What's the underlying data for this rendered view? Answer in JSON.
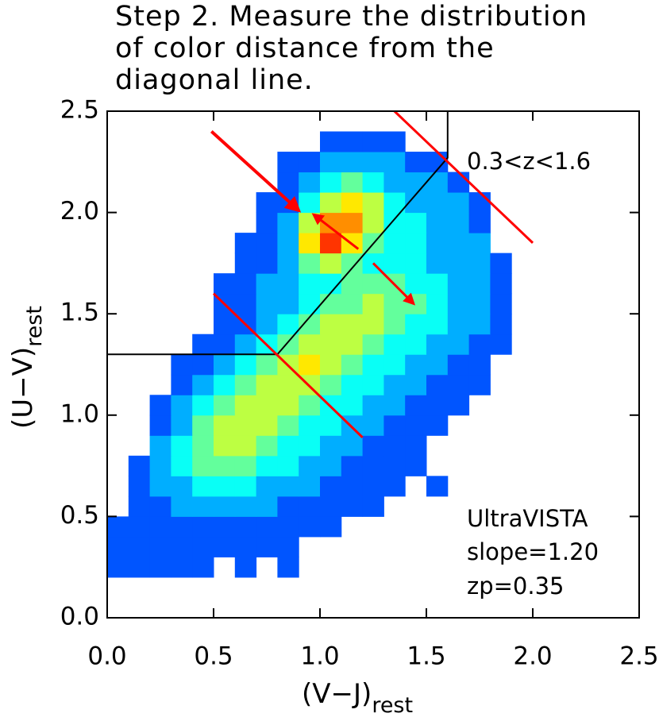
{
  "chart_data": {
    "type": "heatmap",
    "title": [
      "Step 2. Measure the distribution",
      "of color distance from the",
      "diagonal line."
    ],
    "xlabel": "(V−J)",
    "xlabel_sub": "rest",
    "ylabel": "(U−V)",
    "ylabel_sub": "rest",
    "xlim": [
      0,
      2.5
    ],
    "ylim": [
      0,
      2.5
    ],
    "xticks": [
      {
        "value": 0,
        "label": "0.0"
      },
      0.5,
      {
        "value": 1,
        "label": "1.0"
      },
      1.5,
      {
        "value": 2,
        "label": "2.0"
      },
      2.5
    ],
    "yticks": [
      {
        "value": 0,
        "label": "0.0"
      },
      0.5,
      {
        "value": 1,
        "label": "1.0"
      },
      1.5,
      {
        "value": 2,
        "label": "2.0"
      },
      2.5
    ],
    "colormap": "jet",
    "zlim": [
      0,
      10
    ],
    "xbins": [
      0,
      0.1,
      0.2,
      0.3,
      0.4,
      0.5,
      0.6,
      0.7,
      0.8,
      0.9,
      1.0,
      1.1,
      1.2,
      1.3,
      1.4,
      1.5,
      1.6,
      1.7,
      1.8,
      1.9,
      2.0
    ],
    "ybins": [
      0.2,
      0.3,
      0.4,
      0.5,
      0.6,
      0.7,
      0.8,
      0.9,
      1.0,
      1.1,
      1.2,
      1.3,
      1.4,
      1.5,
      1.6,
      1.7,
      1.8,
      1.9,
      2.0,
      2.1,
      2.2,
      2.3,
      2.4
    ],
    "z": [
      [
        1,
        1,
        1,
        1,
        1,
        null,
        1,
        null,
        1,
        null,
        null,
        null,
        null,
        null,
        null,
        null,
        null,
        null,
        null,
        null
      ],
      [
        1,
        1,
        1,
        1,
        1,
        1,
        1,
        1,
        1,
        null,
        null,
        null,
        null,
        null,
        null,
        null,
        null,
        null,
        null,
        null
      ],
      [
        1,
        1,
        1,
        1,
        1,
        1,
        1,
        1,
        1,
        1,
        1,
        null,
        null,
        null,
        null,
        null,
        null,
        null,
        null,
        null
      ],
      [
        null,
        1,
        1,
        2,
        2,
        2,
        2,
        2,
        1,
        1,
        1,
        1,
        1,
        null,
        null,
        null,
        null,
        null,
        null,
        null
      ],
      [
        null,
        1,
        2,
        2,
        3,
        3,
        3,
        2,
        2,
        2,
        1,
        1,
        1,
        1,
        null,
        1,
        null,
        null,
        null,
        null
      ],
      [
        null,
        1,
        2,
        3,
        4,
        4,
        4,
        3,
        3,
        2,
        2,
        1,
        1,
        1,
        1,
        null,
        null,
        null,
        null,
        null
      ],
      [
        null,
        null,
        2,
        3,
        4,
        5,
        5,
        4,
        3,
        3,
        2,
        2,
        1,
        1,
        1,
        null,
        null,
        null,
        null,
        null
      ],
      [
        null,
        null,
        1,
        2,
        4,
        5,
        5,
        5,
        4,
        3,
        3,
        2,
        2,
        1,
        1,
        1,
        null,
        null,
        null,
        null
      ],
      [
        null,
        null,
        1,
        2,
        3,
        4,
        5,
        5,
        5,
        4,
        3,
        3,
        2,
        2,
        1,
        1,
        1,
        null,
        null,
        null
      ],
      [
        null,
        null,
        null,
        1,
        2,
        3,
        4,
        5,
        5,
        5,
        4,
        3,
        3,
        2,
        2,
        1,
        1,
        1,
        null,
        null
      ],
      [
        null,
        null,
        null,
        1,
        1,
        2,
        3,
        4,
        5,
        6,
        5,
        4,
        3,
        3,
        2,
        2,
        1,
        1,
        null,
        null
      ],
      [
        null,
        null,
        null,
        null,
        1,
        1,
        2,
        3,
        4,
        5,
        5,
        5,
        4,
        3,
        3,
        2,
        2,
        1,
        1,
        null
      ],
      [
        null,
        null,
        null,
        null,
        null,
        1,
        1,
        2,
        3,
        4,
        5,
        5,
        5,
        4,
        3,
        3,
        2,
        2,
        1,
        null
      ],
      [
        null,
        null,
        null,
        null,
        null,
        1,
        1,
        2,
        2,
        3,
        4,
        4,
        5,
        4,
        4,
        3,
        2,
        2,
        1,
        null
      ],
      [
        null,
        null,
        null,
        null,
        null,
        1,
        1,
        2,
        2,
        3,
        3,
        4,
        4,
        4,
        3,
        3,
        2,
        2,
        1,
        null
      ],
      [
        null,
        null,
        null,
        null,
        null,
        null,
        1,
        1,
        2,
        4,
        5,
        4,
        3,
        3,
        3,
        2,
        2,
        2,
        1,
        null
      ],
      [
        null,
        null,
        null,
        null,
        null,
        null,
        1,
        1,
        2,
        6,
        8,
        6,
        4,
        3,
        3,
        2,
        2,
        2,
        null,
        null
      ],
      [
        null,
        null,
        null,
        null,
        null,
        null,
        null,
        1,
        2,
        5,
        7,
        7,
        5,
        3,
        3,
        2,
        2,
        1,
        null,
        null
      ],
      [
        null,
        null,
        null,
        null,
        null,
        null,
        null,
        1,
        1,
        3,
        5,
        6,
        5,
        3,
        2,
        2,
        2,
        1,
        null,
        null
      ],
      [
        null,
        null,
        null,
        null,
        null,
        null,
        null,
        null,
        1,
        2,
        3,
        4,
        3,
        2,
        2,
        2,
        1,
        null,
        null,
        null
      ],
      [
        null,
        null,
        null,
        null,
        null,
        null,
        null,
        null,
        1,
        1,
        2,
        2,
        2,
        2,
        1,
        1,
        null,
        null,
        null,
        null
      ],
      [
        null,
        null,
        null,
        null,
        null,
        null,
        null,
        null,
        null,
        null,
        1,
        1,
        1,
        1,
        null,
        null,
        null,
        null,
        null,
        null
      ]
    ],
    "lines": [
      {
        "color": "#000000",
        "width": 2,
        "x": [
          0,
          0.8,
          1.6,
          1.6
        ],
        "y": [
          1.3,
          1.3,
          2.27,
          2.5
        ]
      },
      {
        "color": "#ff0000",
        "width": 3,
        "x": [
          0.5,
          1.2
        ],
        "y": [
          1.6,
          0.89
        ]
      },
      {
        "color": "#ff0000",
        "width": 3,
        "x": [
          1.35,
          2.0
        ],
        "y": [
          2.5,
          1.85
        ]
      }
    ],
    "arrows": [
      {
        "color": "#ff0000",
        "width": 4,
        "x": [
          0.49,
          0.9
        ],
        "y": [
          2.4,
          2.01
        ]
      },
      {
        "color": "#ff0000",
        "width": 3,
        "x": [
          1.18,
          0.97
        ],
        "y": [
          1.82,
          1.99
        ]
      },
      {
        "color": "#ff0000",
        "width": 3,
        "x": [
          1.25,
          1.44
        ],
        "y": [
          1.75,
          1.55
        ]
      }
    ],
    "annotations": [
      "0.3<z<1.6",
      "UltraVISTA",
      "slope=1.20",
      "zp=0.35"
    ]
  }
}
